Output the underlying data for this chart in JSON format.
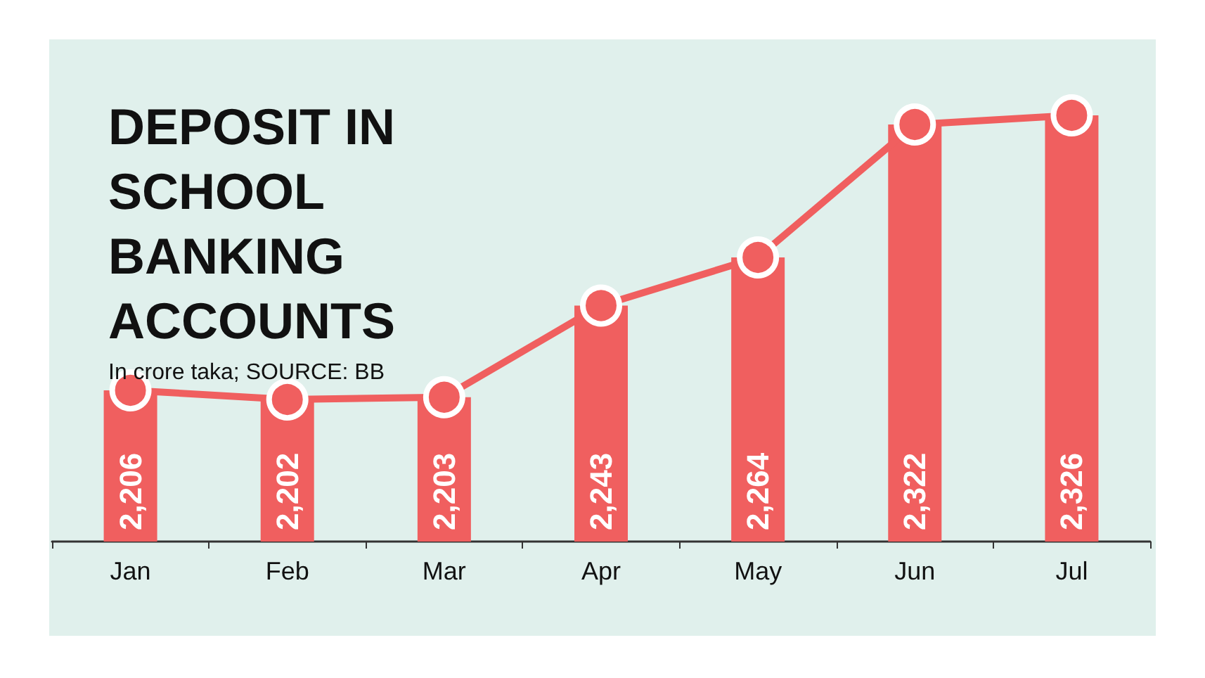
{
  "chart_data": {
    "type": "bar",
    "title": "DEPOSIT IN SCHOOL BANKING ACCOUNTS",
    "subtitle": "In crore taka; SOURCE: BB",
    "categories": [
      "Jan",
      "Feb",
      "Mar",
      "Apr",
      "May",
      "Jun",
      "Jul"
    ],
    "ylim": [
      2140,
      2326
    ],
    "tick_labels": "x",
    "grid": false,
    "series": [
      {
        "color": "#f05f5f",
        "values": [
          2206,
          2202,
          2203,
          2243,
          2264,
          2322,
          2326
        ],
        "value_labels": [
          "2,206",
          "2,202",
          "2,203",
          "2,243",
          "2,264",
          "2,322",
          "2,326"
        ]
      },
      {
        "type": "line",
        "color": "#f05f5f",
        "marker": "circle",
        "line_style": "solid",
        "values": [
          2206,
          2202,
          2203,
          2243,
          2264,
          2322,
          2326
        ]
      }
    ]
  }
}
